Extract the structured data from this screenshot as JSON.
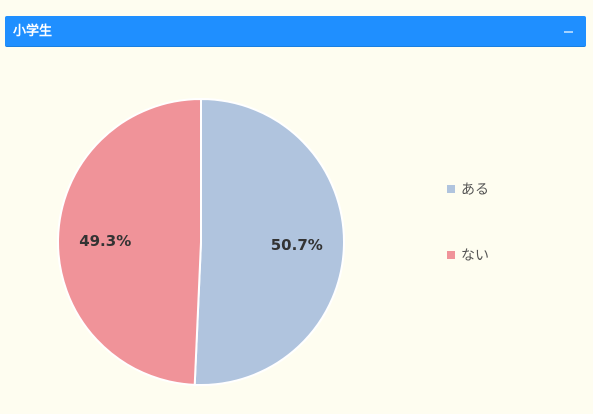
{
  "panel": {
    "title": "小学生",
    "collapse_icon": "minus-icon"
  },
  "chart_data": {
    "type": "pie",
    "title": "",
    "categories": [
      "ある",
      "ない"
    ],
    "values": [
      50.7,
      49.3
    ],
    "labels": [
      "50.7%",
      "49.3%"
    ],
    "colors": [
      "#b0c4de",
      "#f09399"
    ],
    "legend_position": "right",
    "start_angle": "12 o'clock",
    "direction": "clockwise"
  },
  "colors": {
    "header_bg": "#1f8fff",
    "page_bg": "#fefdf0",
    "label_text": "#333333",
    "legend_text": "#555555"
  }
}
